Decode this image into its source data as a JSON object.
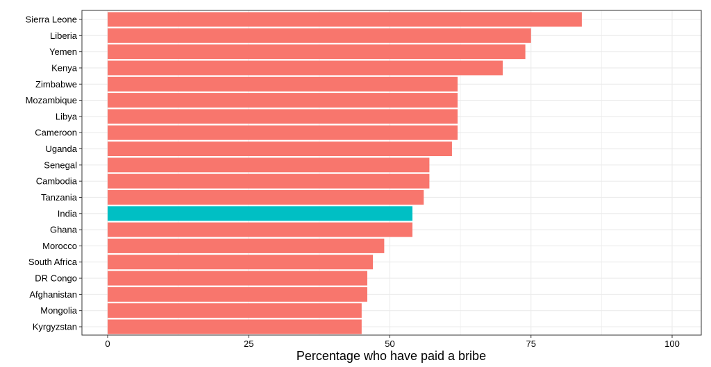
{
  "chart_data": {
    "type": "bar",
    "orientation": "horizontal",
    "title": "",
    "xlabel": "Percentage who have paid a bribe",
    "ylabel": "",
    "xlim": [
      0,
      100
    ],
    "x_ticks": [
      0,
      25,
      50,
      75,
      100
    ],
    "grid": true,
    "legend": "none",
    "categories": [
      "Sierra Leone",
      "Liberia",
      "Yemen",
      "Kenya",
      "Zimbabwe",
      "Mozambique",
      "Libya",
      "Cameroon",
      "Uganda",
      "Senegal",
      "Cambodia",
      "Tanzania",
      "India",
      "Ghana",
      "Morocco",
      "South Africa",
      "DR Congo",
      "Afghanistan",
      "Mongolia",
      "Kyrgyzstan"
    ],
    "values": [
      84,
      75,
      74,
      70,
      62,
      62,
      62,
      62,
      61,
      57,
      57,
      56,
      54,
      54,
      49,
      47,
      46,
      46,
      45,
      45
    ],
    "highlight": "India",
    "colors": {
      "default": "#F8766D",
      "highlight": "#00BFC4",
      "grid": "#EBEBEB",
      "panel_border": "#333333"
    }
  }
}
